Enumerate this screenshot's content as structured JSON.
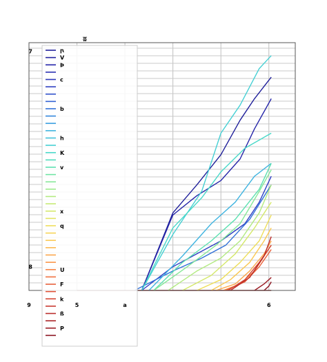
{
  "chart_data": {
    "type": "line",
    "title": "ʬ",
    "xlabel": "",
    "ylabel": "",
    "x_ticks": [
      {
        "value": 0,
        "label": "9"
      },
      {
        "value": 1,
        "label": "5"
      },
      {
        "value": 2,
        "label": "a"
      },
      {
        "value": 5,
        "label": "6"
      }
    ],
    "y_ticks": [
      {
        "value": 0,
        "label": "8"
      },
      {
        "value": 1,
        "label": "7"
      }
    ],
    "xlim": [
      0,
      5.55
    ],
    "ylim": [
      -0.11,
      1.04
    ],
    "baseline": -0.11,
    "grid": true,
    "legend_position": "upper-left",
    "legend": [
      {
        "label": "ꞃ",
        "color": "#1f1f9a"
      },
      {
        "label": "V",
        "color": "#20209f"
      },
      {
        "label": "Þ",
        "color": "#2424a8"
      },
      {
        "label": "",
        "color": "#2a30b2"
      },
      {
        "label": "c",
        "color": "#2e38bb"
      },
      {
        "label": "",
        "color": "#3040c4"
      },
      {
        "label": "",
        "color": "#3050cc"
      },
      {
        "label": "",
        "color": "#3060d2"
      },
      {
        "label": "b",
        "color": "#3070d8"
      },
      {
        "label": "",
        "color": "#3286dc"
      },
      {
        "label": "",
        "color": "#389ee0"
      },
      {
        "label": "",
        "color": "#40b4e0"
      },
      {
        "label": "h",
        "color": "#44c4dc"
      },
      {
        "label": "",
        "color": "#46d0d4"
      },
      {
        "label": "K",
        "color": "#48d8c8"
      },
      {
        "label": "",
        "color": "#50dcbc"
      },
      {
        "label": "v",
        "color": "#5ce0b0"
      },
      {
        "label": "",
        "color": "#70e4a4"
      },
      {
        "label": "",
        "color": "#86e898"
      },
      {
        "label": "",
        "color": "#9cea8c"
      },
      {
        "label": "",
        "color": "#b2ea80"
      },
      {
        "label": "",
        "color": "#c6ea74"
      },
      {
        "label": "x",
        "color": "#d4e86a"
      },
      {
        "label": "",
        "color": "#e2e462"
      },
      {
        "label": "q",
        "color": "#eede5a"
      },
      {
        "label": "",
        "color": "#f6d456"
      },
      {
        "label": "",
        "color": "#fac852"
      },
      {
        "label": "",
        "color": "#fcb84e"
      },
      {
        "label": "",
        "color": "#fca64a"
      },
      {
        "label": "",
        "color": "#fa9446"
      },
      {
        "label": "U",
        "color": "#f68242"
      },
      {
        "label": "",
        "color": "#f0703e"
      },
      {
        "label": "F",
        "color": "#e8603a"
      },
      {
        "label": "",
        "color": "#e05036"
      },
      {
        "label": "k",
        "color": "#d44432"
      },
      {
        "label": "",
        "color": "#c8382e"
      },
      {
        "label": "ß",
        "color": "#ba2c2a"
      },
      {
        "label": "",
        "color": "#aa2226"
      },
      {
        "label": "P",
        "color": "#9a1a22"
      },
      {
        "label": "",
        "color": "#8a121e"
      }
    ],
    "series": [
      {
        "color": "#1f1f9a",
        "x": [
          2.35,
          3.0,
          3.5,
          4.0,
          4.4,
          4.7,
          5.05
        ],
        "y": [
          -0.11,
          0.25,
          0.38,
          0.52,
          0.68,
          0.78,
          0.88
        ]
      },
      {
        "color": "#2424a8",
        "x": [
          2.35,
          3.0,
          3.5,
          4.0,
          4.4,
          4.7,
          5.05
        ],
        "y": [
          -0.11,
          0.24,
          0.33,
          0.4,
          0.5,
          0.64,
          0.78
        ]
      },
      {
        "color": "#3040c4",
        "x": [
          2.35,
          3.0,
          3.5,
          4.0,
          4.5,
          4.8,
          5.05
        ],
        "y": [
          -0.11,
          0.0,
          0.06,
          0.12,
          0.2,
          0.3,
          0.42
        ]
      },
      {
        "color": "#3070d8",
        "x": [
          2.2,
          3.0,
          3.6,
          4.1,
          4.6,
          5.05
        ],
        "y": [
          -0.11,
          -0.02,
          0.04,
          0.1,
          0.22,
          0.38
        ]
      },
      {
        "color": "#40b4e0",
        "x": [
          2.5,
          3.2,
          3.8,
          4.3,
          4.7,
          5.05
        ],
        "y": [
          -0.11,
          0.05,
          0.2,
          0.3,
          0.42,
          0.48
        ]
      },
      {
        "color": "#46d0d4",
        "x": [
          2.35,
          3.0,
          3.6,
          4.0,
          4.4,
          4.8,
          5.05
        ],
        "y": [
          -0.11,
          0.15,
          0.35,
          0.62,
          0.75,
          0.92,
          0.98
        ]
      },
      {
        "color": "#48d8c8",
        "x": [
          2.35,
          3.0,
          3.6,
          4.0,
          4.5,
          5.05
        ],
        "y": [
          -0.11,
          0.18,
          0.32,
          0.44,
          0.55,
          0.62
        ]
      },
      {
        "color": "#5ce0b0",
        "x": [
          2.6,
          3.2,
          3.8,
          4.3,
          4.8,
          5.05
        ],
        "y": [
          -0.11,
          0.02,
          0.12,
          0.22,
          0.36,
          0.48
        ]
      },
      {
        "color": "#86e898",
        "x": [
          2.6,
          3.3,
          3.9,
          4.4,
          4.8,
          5.05
        ],
        "y": [
          -0.11,
          0.0,
          0.1,
          0.2,
          0.35,
          0.45
        ]
      },
      {
        "color": "#b2ea80",
        "x": [
          2.9,
          3.5,
          4.0,
          4.4,
          4.8,
          5.05
        ],
        "y": [
          -0.11,
          -0.02,
          0.04,
          0.12,
          0.25,
          0.38
        ]
      },
      {
        "color": "#d4e86a",
        "x": [
          3.2,
          3.8,
          4.3,
          4.7,
          5.05
        ],
        "y": [
          -0.11,
          -0.04,
          0.06,
          0.18,
          0.3
        ]
      },
      {
        "color": "#eede5a",
        "x": [
          3.5,
          4.0,
          4.4,
          4.8,
          5.05
        ],
        "y": [
          -0.11,
          -0.06,
          0.02,
          0.12,
          0.24
        ]
      },
      {
        "color": "#fac852",
        "x": [
          3.8,
          4.2,
          4.6,
          4.9,
          5.05
        ],
        "y": [
          -0.11,
          -0.06,
          0.02,
          0.12,
          0.18
        ]
      },
      {
        "color": "#fca64a",
        "x": [
          3.9,
          4.3,
          4.6,
          4.9,
          5.05
        ],
        "y": [
          -0.11,
          -0.08,
          -0.02,
          0.06,
          0.12
        ]
      },
      {
        "color": "#f68242",
        "x": [
          4.05,
          4.4,
          4.7,
          5.05
        ],
        "y": [
          -0.11,
          -0.08,
          -0.02,
          0.1
        ]
      },
      {
        "color": "#e8603a",
        "x": [
          4.1,
          4.5,
          4.8,
          5.05
        ],
        "y": [
          -0.11,
          -0.07,
          0.0,
          0.08
        ]
      },
      {
        "color": "#d44432",
        "x": [
          4.15,
          4.5,
          4.8,
          5.05
        ],
        "y": [
          -0.11,
          -0.06,
          0.02,
          0.1
        ]
      },
      {
        "color": "#ba2c2a",
        "x": [
          4.2,
          4.6,
          4.9,
          5.05
        ],
        "y": [
          -0.11,
          -0.05,
          0.05,
          0.14
        ]
      },
      {
        "color": "#9a1a22",
        "x": [
          4.7,
          4.9,
          5.05
        ],
        "y": [
          -0.11,
          -0.08,
          -0.05
        ]
      },
      {
        "color": "#8a121e",
        "x": [
          4.9,
          5.0,
          5.05
        ],
        "y": [
          -0.11,
          -0.09,
          -0.07
        ]
      }
    ]
  }
}
